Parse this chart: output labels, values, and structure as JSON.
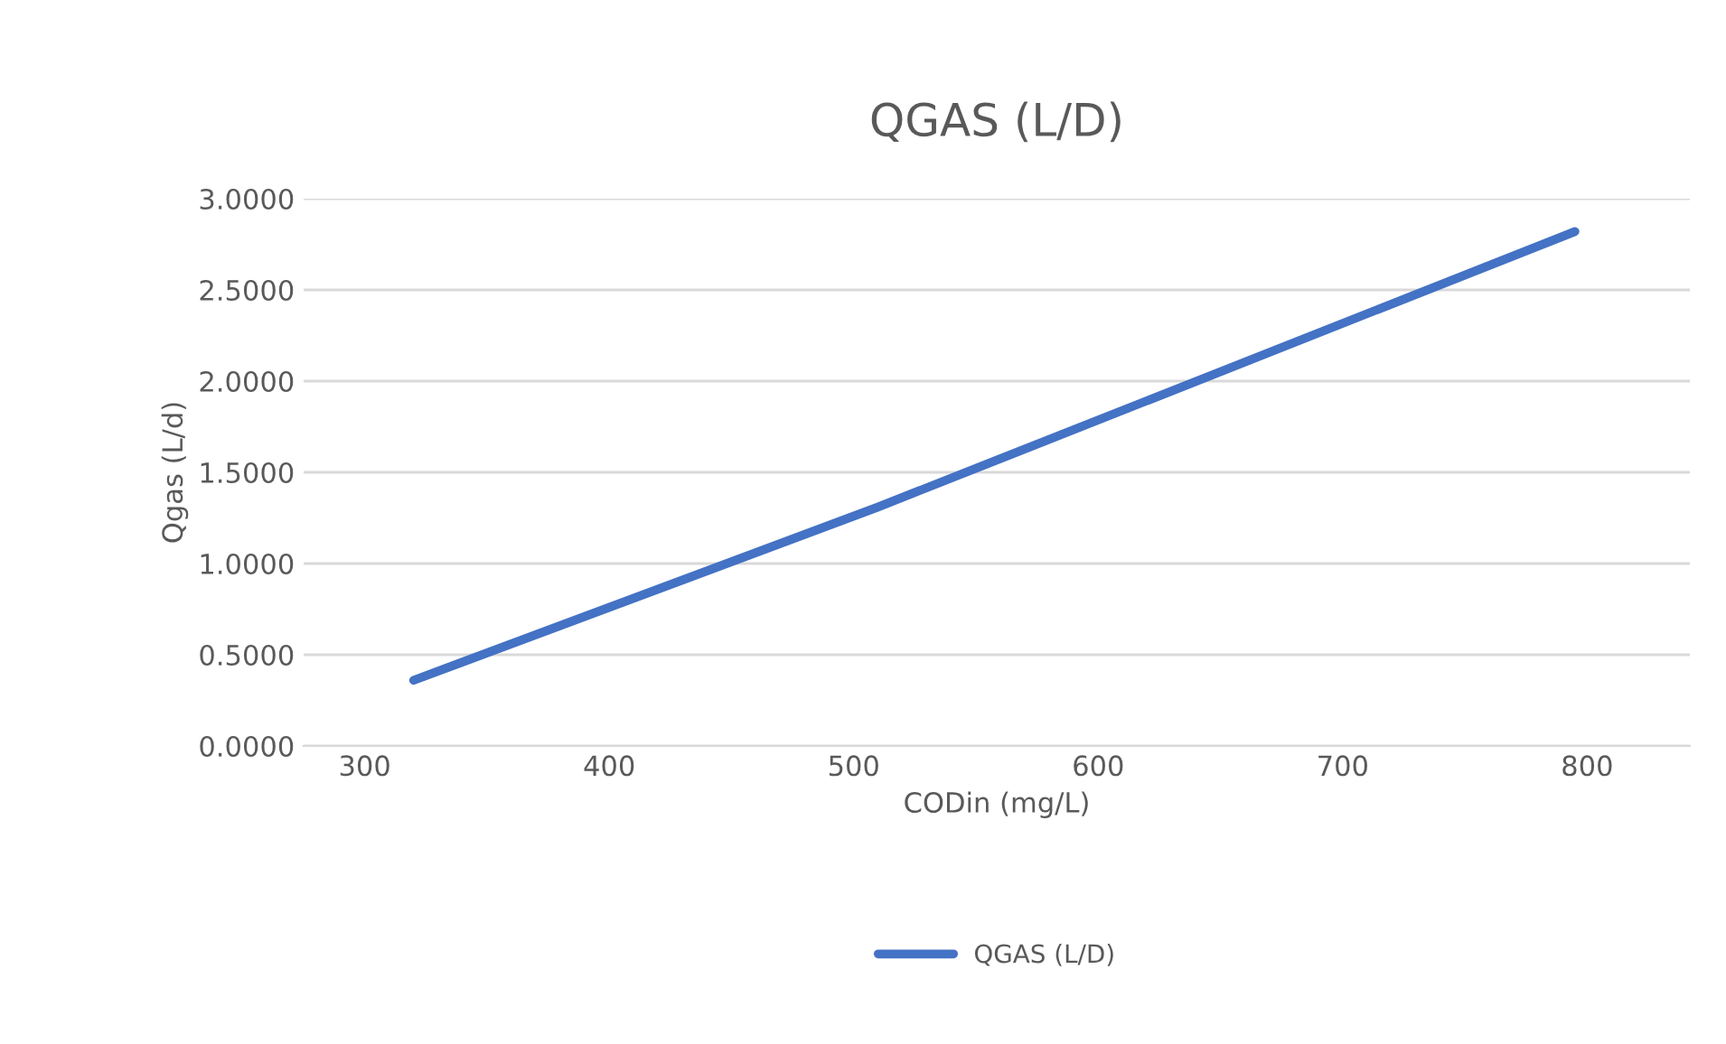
{
  "chart_data": {
    "type": "line",
    "title": "QGAS (L/D)",
    "xlabel": "CODin (mg/L)",
    "ylabel": "Qgas (L/d)",
    "x": [
      320,
      510,
      795
    ],
    "series": [
      {
        "name": "QGAS (L/D)",
        "color": "#4472c4",
        "values": [
          0.36,
          1.31,
          2.82
        ]
      }
    ],
    "xlim": [
      275,
      842
    ],
    "xticks": [
      300,
      400,
      500,
      600,
      700,
      800
    ],
    "ylim": [
      0,
      3
    ],
    "yticks": [
      {
        "value": 0,
        "label": "0.0000"
      },
      {
        "value": 0.5,
        "label": "0.5000"
      },
      {
        "value": 1,
        "label": "1.0000"
      },
      {
        "value": 1.5,
        "label": "1.5000"
      },
      {
        "value": 2,
        "label": "2.0000"
      },
      {
        "value": 2.5,
        "label": "2.5000"
      },
      {
        "value": 3,
        "label": "3.0000"
      }
    ],
    "grid": "y",
    "legend": "bottom",
    "marker": "none",
    "line_style": "solid"
  }
}
